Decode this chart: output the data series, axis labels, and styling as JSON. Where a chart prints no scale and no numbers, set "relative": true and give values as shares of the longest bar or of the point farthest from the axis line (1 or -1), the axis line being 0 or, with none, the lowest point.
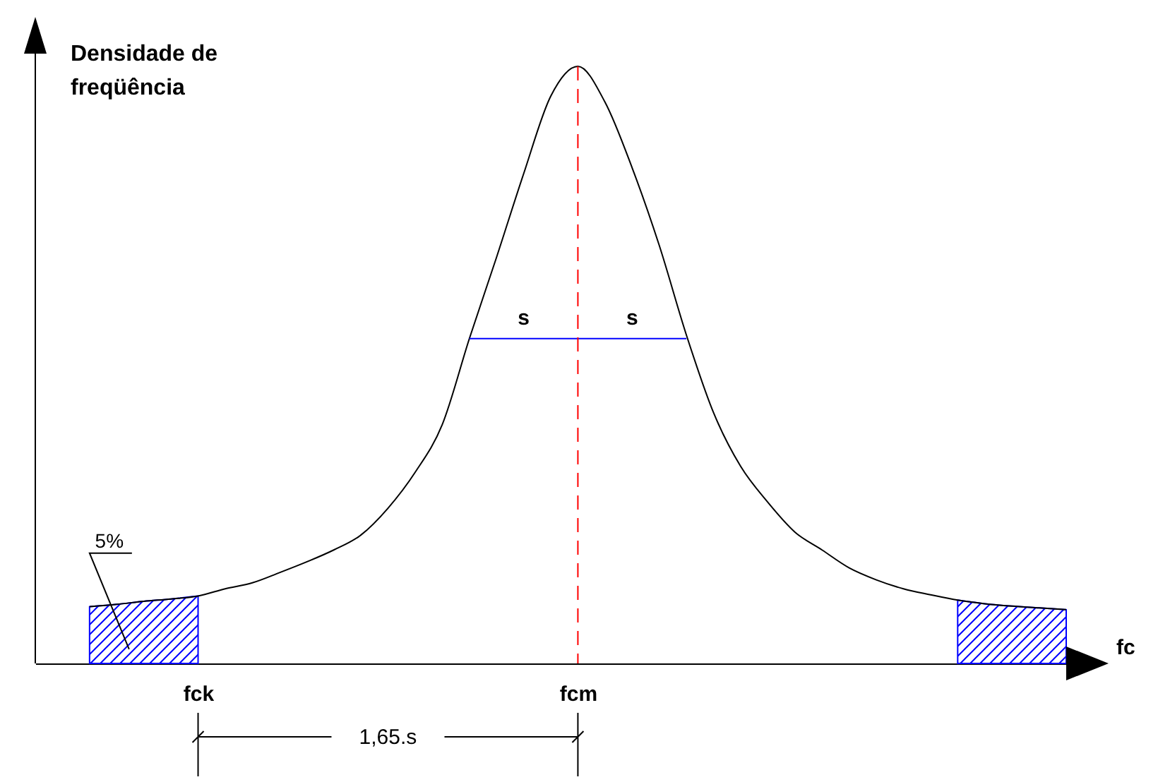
{
  "chart_data": {
    "type": "line",
    "relative": true,
    "xlabel": "fc",
    "ylabel": "Densidade de freqüência",
    "grid": false,
    "categories": [
      null,
      null,
      null,
      null,
      null,
      null,
      "fck",
      null,
      null,
      null,
      null,
      null,
      null,
      null,
      null,
      null,
      null,
      null,
      null,
      null,
      "fcm",
      null,
      null,
      null,
      null,
      null,
      null,
      null,
      null,
      null,
      null,
      null,
      null,
      null,
      null,
      null,
      null,
      null,
      null
    ],
    "series": [
      {
        "color": "#000000",
        "values": [
          null,
          null,
          0.095,
          0.099,
          0.104,
          0.108,
          0.113,
          0.125,
          0.135,
          0.152,
          0.17,
          0.19,
          0.215,
          0.26,
          0.32,
          0.4,
          0.544,
          0.68,
          0.82,
          0.95,
          1,
          0.94,
          0.83,
          0.7,
          0.55,
          0.42,
          0.33,
          0.27,
          0.22,
          0.19,
          0.16,
          0.14,
          0.125,
          0.115,
          0.106,
          0.1,
          0.096,
          0.093,
          0.09
        ]
      },
      {
        "type": "line",
        "color": "#0000ff",
        "values": [
          null,
          null,
          null,
          null,
          null,
          null,
          null,
          null,
          null,
          null,
          null,
          null,
          null,
          null,
          null,
          null,
          0.544,
          0.544,
          0.544,
          0.544,
          0.544,
          0.544,
          0.544,
          0.544,
          0.544,
          null,
          null,
          null,
          null,
          null,
          null,
          null,
          null,
          null,
          null,
          null,
          null,
          null,
          null
        ]
      },
      {
        "type": "area",
        "color": "#0000ff",
        "values": [
          null,
          null,
          0.095,
          0.099,
          0.104,
          0.108,
          0.113,
          null,
          null,
          null,
          null,
          null,
          null,
          null,
          null,
          null,
          null,
          null,
          null,
          null,
          null,
          null,
          null,
          null,
          null,
          null,
          null,
          null,
          null,
          null,
          null,
          null,
          null,
          null,
          null,
          null,
          null,
          null,
          null
        ]
      },
      {
        "type": "area",
        "color": "#0000ff",
        "values": [
          null,
          null,
          null,
          null,
          null,
          null,
          null,
          null,
          null,
          null,
          null,
          null,
          null,
          null,
          null,
          null,
          null,
          null,
          null,
          null,
          null,
          null,
          null,
          null,
          null,
          null,
          null,
          null,
          null,
          null,
          null,
          null,
          null,
          null,
          0.106,
          0.1,
          0.096,
          0.093,
          0.09
        ]
      }
    ],
    "ref_lines": [
      {
        "axis": "x",
        "value": "fcm",
        "color": "#ff0000",
        "line_style": "dashed"
      }
    ],
    "annotations": [
      "s",
      "s",
      "5%",
      "1,65.s"
    ]
  }
}
